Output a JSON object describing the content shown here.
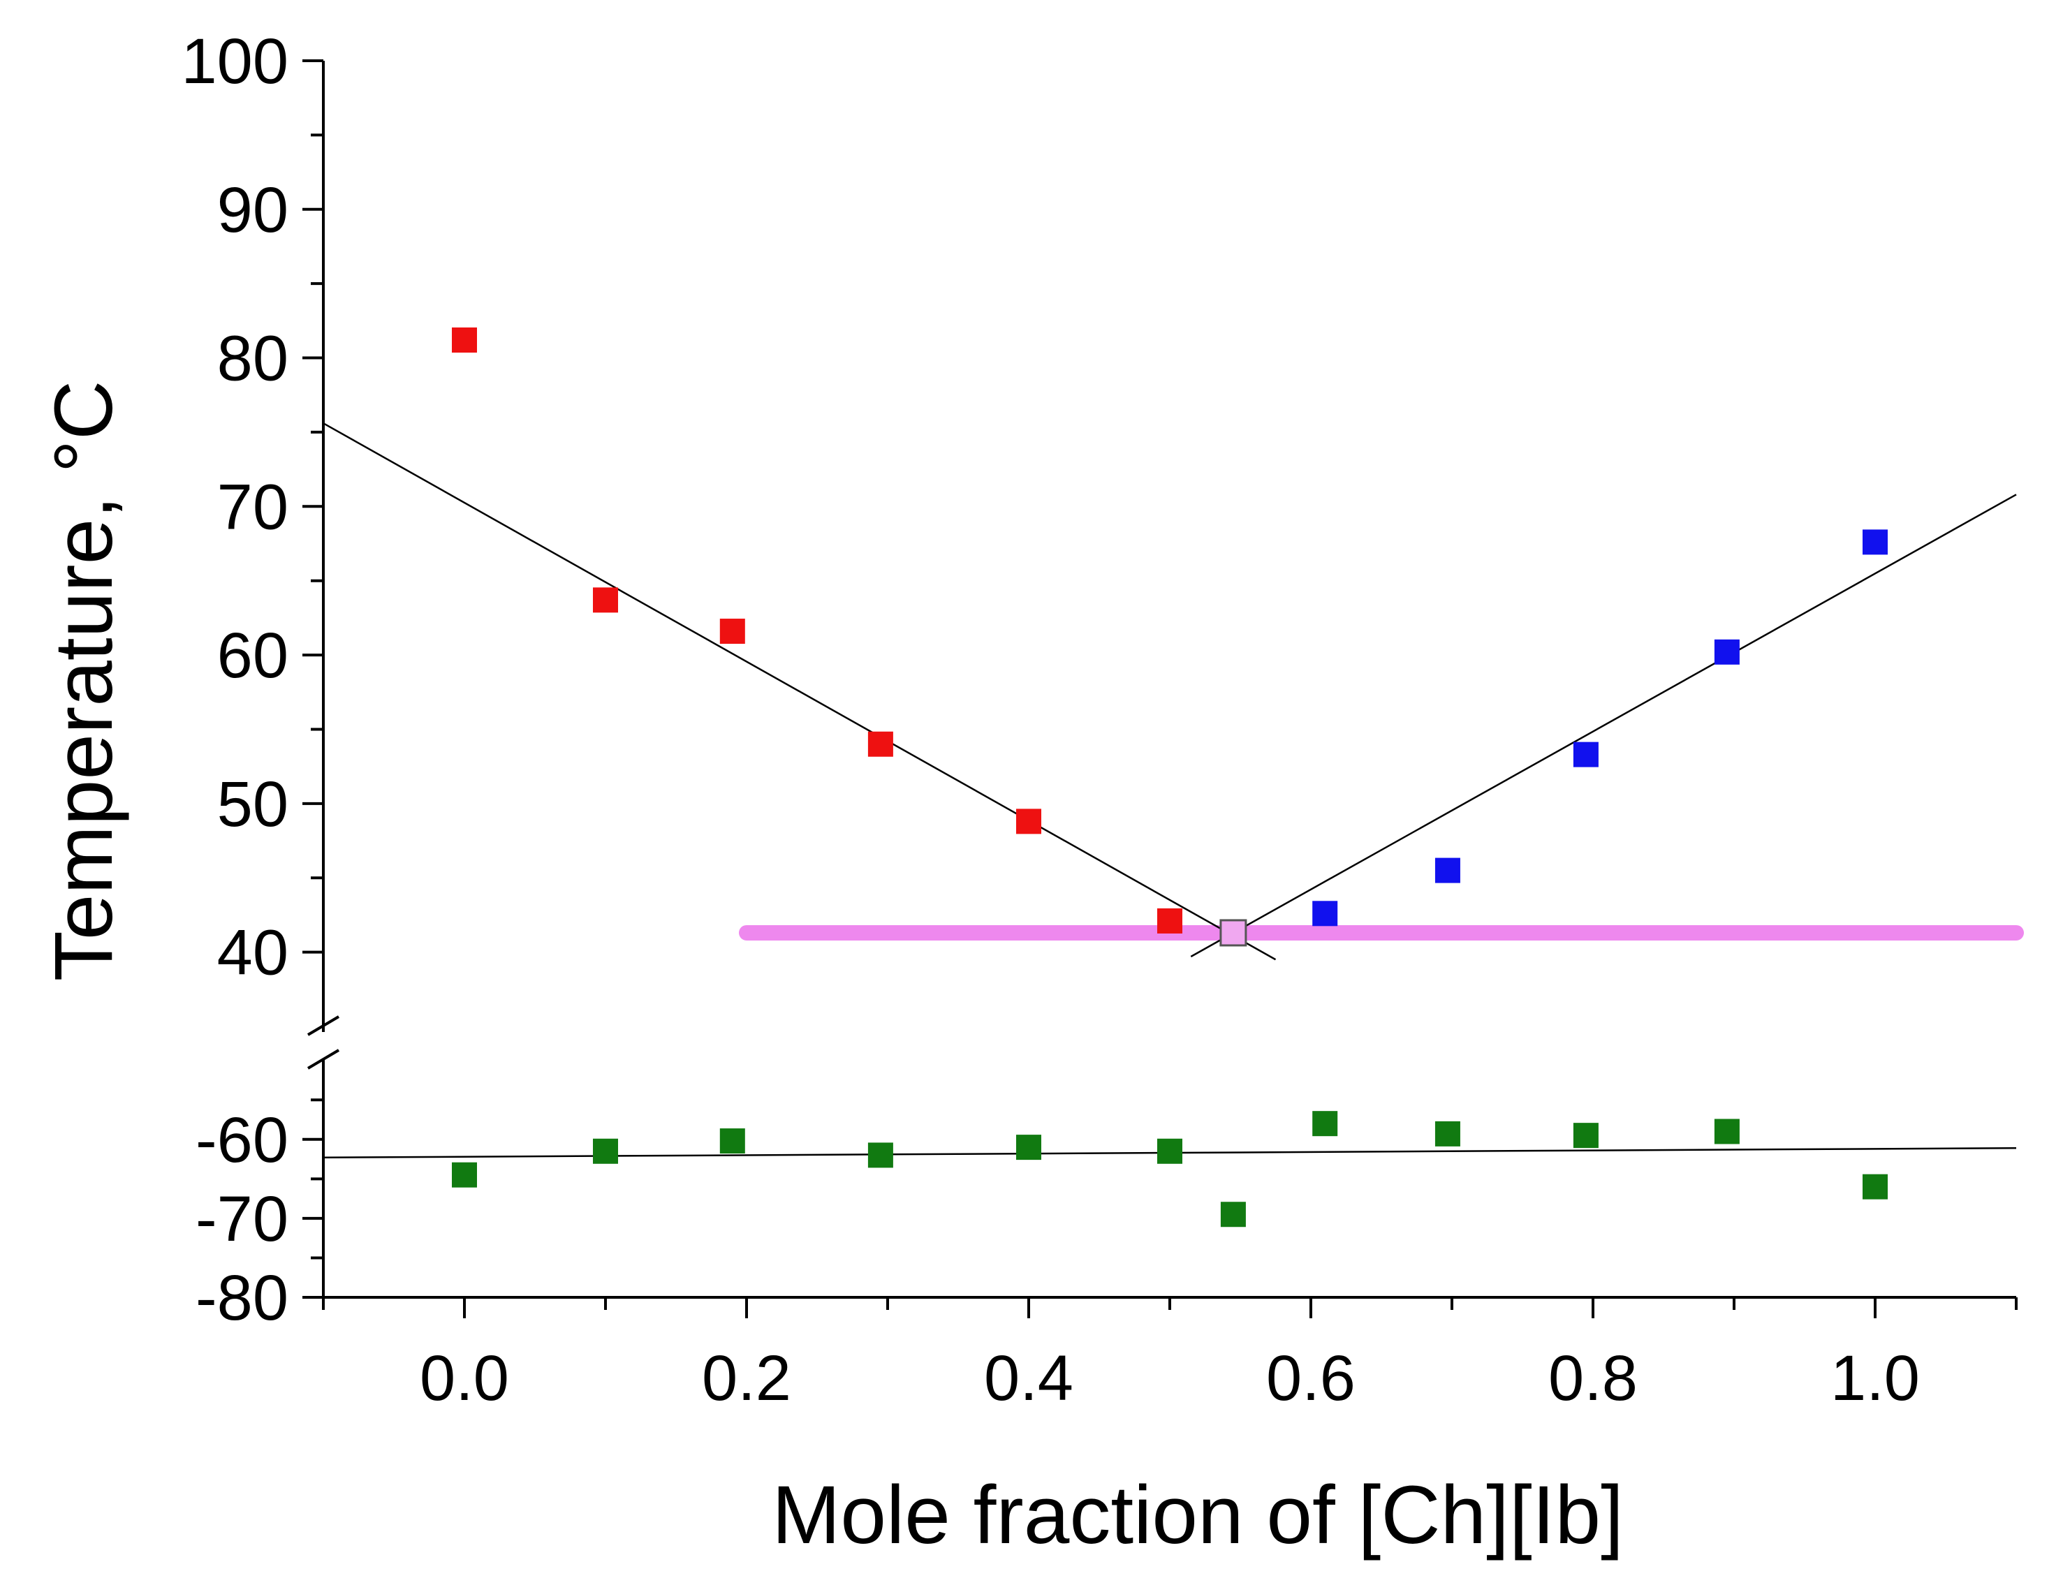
{
  "chart_data": {
    "type": "scatter",
    "xlabel": "Mole fraction of [Ch][Ib]",
    "ylabel": "Temperature, °C",
    "xlim": [
      -0.1,
      1.1
    ],
    "x_ticks": [
      "0.0",
      "0.2",
      "0.4",
      "0.6",
      "0.8",
      "1.0"
    ],
    "y_upper": {
      "ylim": [
        35,
        100
      ],
      "ticks": [
        "40",
        "50",
        "60",
        "70",
        "80",
        "90",
        "100"
      ]
    },
    "y_lower": {
      "ylim": [
        -80,
        -51
      ],
      "ticks": [
        "-60",
        "-70",
        "-80"
      ]
    },
    "colors": {
      "red": "#ee1111",
      "blue": "#1111ee",
      "green": "#117a11",
      "eutectic": "#ee88ee",
      "eutectic_marker": "#f0a8f0"
    },
    "series": [
      {
        "name": "liquidus-left",
        "color": "#ee1111",
        "x": [
          0.0,
          0.1,
          0.19,
          0.295,
          0.4,
          0.5
        ],
        "y": [
          81.2,
          63.7,
          61.6,
          54.0,
          48.8,
          42.1
        ]
      },
      {
        "name": "liquidus-right",
        "color": "#1111ee",
        "x": [
          0.61,
          0.697,
          0.795,
          0.895,
          1.0
        ],
        "y": [
          42.6,
          45.5,
          53.3,
          60.2,
          67.6
        ]
      },
      {
        "name": "eutectic-point",
        "color": "#f0a8f0",
        "x": [
          0.545
        ],
        "y": [
          41.3
        ]
      },
      {
        "name": "glass-transition",
        "color": "#117a11",
        "x": [
          0.0,
          0.1,
          0.19,
          0.295,
          0.4,
          0.5,
          0.545,
          0.61,
          0.697,
          0.795,
          0.895,
          1.0
        ],
        "y": [
          -64.5,
          -61.5,
          -60.2,
          -62.0,
          -61.0,
          -61.5,
          -69.5,
          -58.0,
          -59.3,
          -59.5,
          -59.0,
          -66.0
        ]
      }
    ],
    "fit_lines": [
      {
        "name": "fit-left",
        "segment": "upper",
        "x": [
          -0.1,
          0.575
        ],
        "y": [
          75.6,
          39.5
        ]
      },
      {
        "name": "fit-right",
        "segment": "upper",
        "x": [
          0.515,
          1.1
        ],
        "y": [
          39.7,
          70.8
        ]
      },
      {
        "name": "fit-glass",
        "segment": "lower",
        "x": [
          -0.1,
          1.1
        ],
        "y": [
          -62.3,
          -61.1
        ]
      }
    ],
    "eutectic_line": {
      "y": 41.3,
      "x": [
        0.2,
        1.1
      ]
    }
  }
}
